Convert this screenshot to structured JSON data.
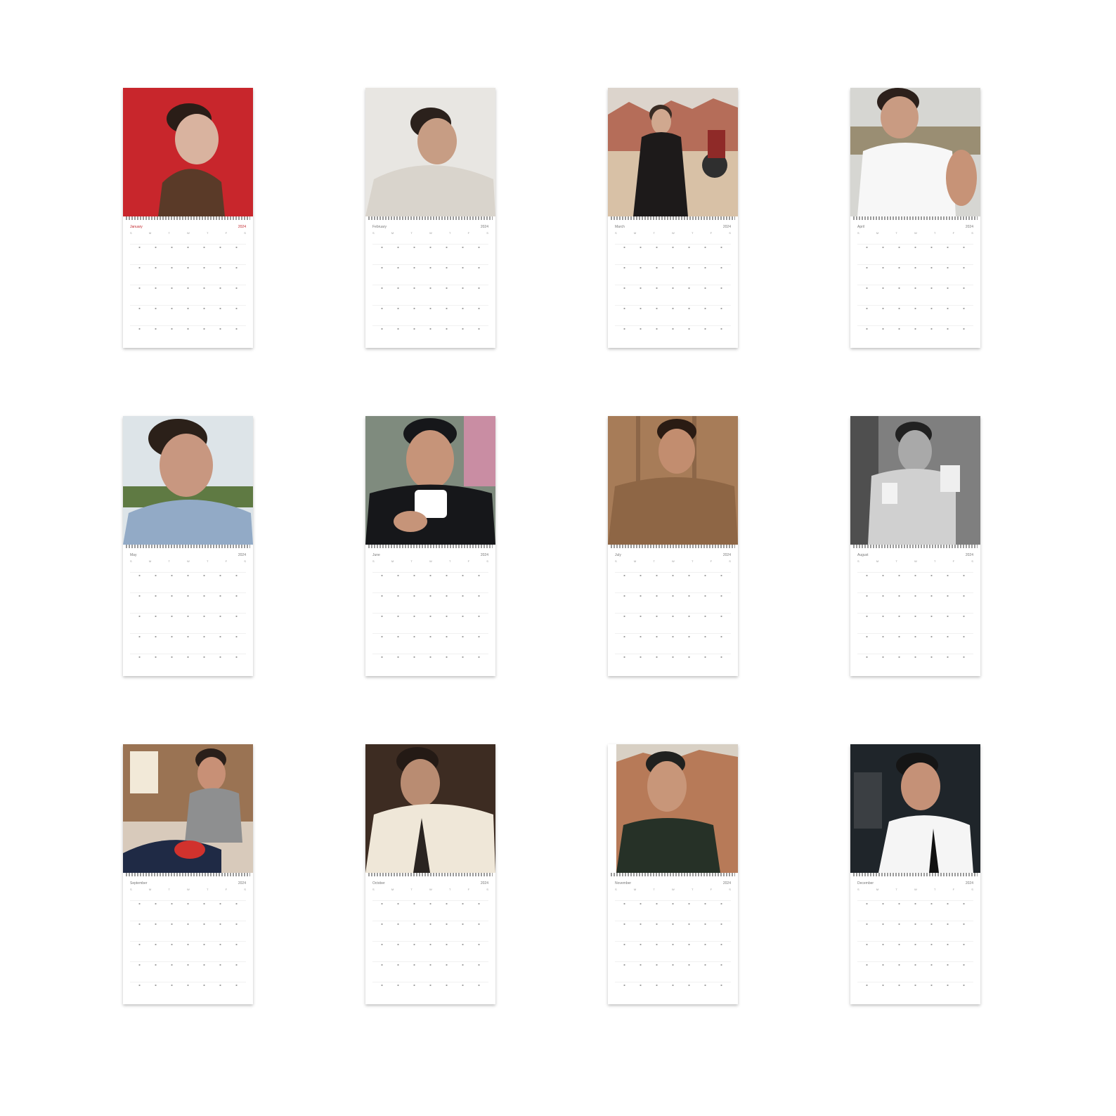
{
  "calendars": [
    {
      "id": "jan",
      "month": "January",
      "year": "2024",
      "bg": "#c8262c",
      "figure": "#2a1d17",
      "accent": "#5a3a28"
    },
    {
      "id": "feb",
      "month": "February",
      "year": "2024",
      "bg": "#e8e6e2",
      "figure": "#2b211c",
      "accent": "#d9d4cc"
    },
    {
      "id": "mar",
      "month": "March",
      "year": "2024",
      "bg": "#b56d59",
      "figure": "#1d1a1a",
      "accent": "#d8c1a6"
    },
    {
      "id": "apr",
      "month": "April",
      "year": "2024",
      "bg": "#d6d6d2",
      "figure": "#2c201b",
      "accent": "#f7f7f7"
    },
    {
      "id": "may",
      "month": "May",
      "year": "2024",
      "bg": "#dde4e8",
      "figure": "#2b2019",
      "accent": "#92aac6"
    },
    {
      "id": "jun",
      "month": "June",
      "year": "2024",
      "bg": "#7f8b7e",
      "figure": "#16171a",
      "accent": "#ffffff"
    },
    {
      "id": "jul",
      "month": "July",
      "year": "2024",
      "bg": "#a77c58",
      "figure": "#2a1b13",
      "accent": "#8e6645"
    },
    {
      "id": "aug",
      "month": "August",
      "year": "2024",
      "bg": "#7f7f7f",
      "figure": "#212121",
      "accent": "#d0d0d0"
    },
    {
      "id": "sep",
      "month": "September",
      "year": "2024",
      "bg": "#9a7353",
      "figure": "#2a1f1a",
      "accent": "#1f2a45"
    },
    {
      "id": "oct",
      "month": "October",
      "year": "2024",
      "bg": "#3d2c22",
      "figure": "#241a15",
      "accent": "#efe7d8"
    },
    {
      "id": "nov",
      "month": "November",
      "year": "2024",
      "bg": "#b77a58",
      "figure": "#20211f",
      "accent": "#263127"
    },
    {
      "id": "dec",
      "month": "December",
      "year": "2024",
      "bg": "#1f252a",
      "figure": "#151515",
      "accent": "#f5f5f5"
    }
  ],
  "weekdays": [
    "S",
    "M",
    "T",
    "W",
    "T",
    "F",
    "S"
  ]
}
